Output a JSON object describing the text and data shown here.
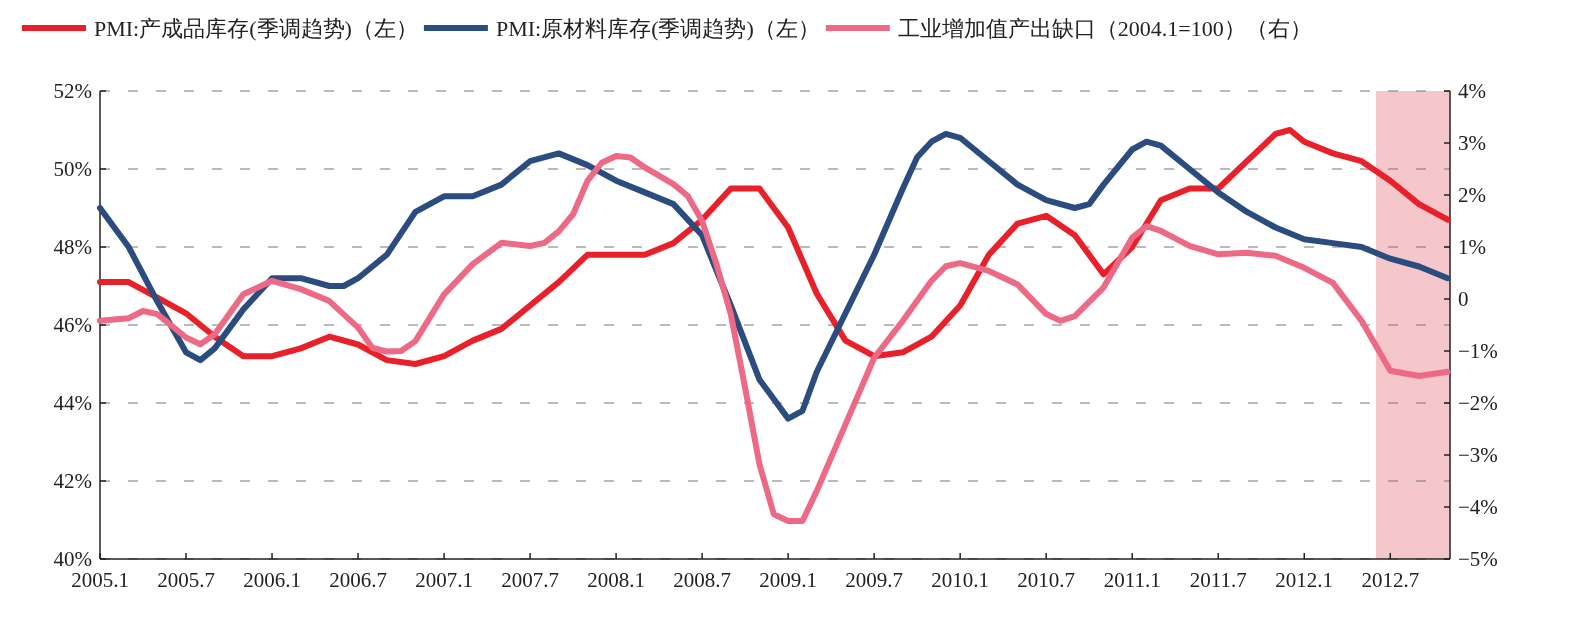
{
  "chart_data": {
    "type": "line",
    "series": [
      {
        "name": "PMI:产成品库存(季调趋势)（左）",
        "color": "#e8202a",
        "x": [
          "2005-01",
          "2005-03",
          "2005-05",
          "2005-07",
          "2005-09",
          "2005-11",
          "2006-01",
          "2006-03",
          "2006-05",
          "2006-07",
          "2006-09",
          "2006-11",
          "2007-01",
          "2007-03",
          "2007-05",
          "2007-07",
          "2007-09",
          "2007-11",
          "2008-01",
          "2008-03",
          "2008-05",
          "2008-07",
          "2008-09",
          "2008-11",
          "2009-01",
          "2009-03",
          "2009-05",
          "2009-07",
          "2009-09",
          "2009-11",
          "2010-01",
          "2010-03",
          "2010-05",
          "2010-07",
          "2010-09",
          "2010-11",
          "2011-01",
          "2011-03",
          "2011-05",
          "2011-07",
          "2011-09",
          "2011-11",
          "2011-12",
          "2012-01",
          "2012-03",
          "2012-05",
          "2012-07",
          "2012-09",
          "2012-11"
        ],
        "values": [
          47.1,
          47.1,
          46.7,
          46.3,
          45.7,
          45.2,
          45.2,
          45.4,
          45.7,
          45.5,
          45.1,
          45.0,
          45.2,
          45.6,
          45.9,
          46.5,
          47.1,
          47.8,
          47.8,
          47.8,
          48.1,
          48.7,
          49.5,
          49.5,
          48.5,
          46.8,
          45.6,
          45.2,
          45.3,
          45.7,
          46.5,
          47.8,
          48.6,
          48.8,
          48.3,
          47.3,
          48.0,
          49.2,
          49.5,
          49.5,
          50.2,
          50.9,
          51.0,
          50.7,
          50.4,
          50.2,
          49.7,
          49.1,
          48.7
        ]
      },
      {
        "name": "PMI:原材料库存(季调趋势)（左）",
        "color": "#2b4c7e",
        "x": [
          "2005-01",
          "2005-03",
          "2005-05",
          "2005-07",
          "2005-08",
          "2005-09",
          "2005-11",
          "2006-01",
          "2006-03",
          "2006-05",
          "2006-06",
          "2006-07",
          "2006-09",
          "2006-11",
          "2007-01",
          "2007-03",
          "2007-05",
          "2007-07",
          "2007-09",
          "2007-11",
          "2008-01",
          "2008-03",
          "2008-05",
          "2008-07",
          "2008-09",
          "2008-11",
          "2009-01",
          "2009-02",
          "2009-03",
          "2009-05",
          "2009-07",
          "2009-09",
          "2009-10",
          "2009-11",
          "2009-12",
          "2010-01",
          "2010-03",
          "2010-05",
          "2010-07",
          "2010-09",
          "2010-10",
          "2010-11",
          "2011-01",
          "2011-02",
          "2011-03",
          "2011-05",
          "2011-07",
          "2011-09",
          "2011-11",
          "2012-01",
          "2012-03",
          "2012-05",
          "2012-07",
          "2012-09",
          "2012-11"
        ],
        "values": [
          49.0,
          48.0,
          46.6,
          45.3,
          45.1,
          45.4,
          46.4,
          47.2,
          47.2,
          47.0,
          47.0,
          47.2,
          47.8,
          48.9,
          49.3,
          49.3,
          49.6,
          50.2,
          50.4,
          50.1,
          49.7,
          49.4,
          49.1,
          48.3,
          46.5,
          44.6,
          43.6,
          43.8,
          44.8,
          46.3,
          47.8,
          49.5,
          50.3,
          50.7,
          50.9,
          50.8,
          50.2,
          49.6,
          49.2,
          49.0,
          49.1,
          49.6,
          50.5,
          50.7,
          50.6,
          50.0,
          49.4,
          48.9,
          48.5,
          48.2,
          48.1,
          48.0,
          47.7,
          47.5,
          47.2
        ]
      },
      {
        "name": "工业增加值产出缺口（2004.1=100）（右）",
        "color": "#ec6a86",
        "axis": "y2",
        "x": [
          "2005-01",
          "2005-03",
          "2005-04",
          "2005-05",
          "2005-07",
          "2005-08",
          "2005-09",
          "2005-11",
          "2006-01",
          "2006-03",
          "2006-05",
          "2006-07",
          "2006-08",
          "2006-09",
          "2006-10",
          "2006-11",
          "2007-01",
          "2007-03",
          "2007-05",
          "2007-07",
          "2007-08",
          "2007-09",
          "2007-10",
          "2007-11",
          "2007-12",
          "2008-01",
          "2008-02",
          "2008-03",
          "2008-05",
          "2008-06",
          "2008-07",
          "2008-08",
          "2008-09",
          "2008-10",
          "2008-11",
          "2008-12",
          "2009-01",
          "2009-02",
          "2009-03",
          "2009-05",
          "2009-07",
          "2009-09",
          "2009-11",
          "2009-12",
          "2010-01",
          "2010-03",
          "2010-05",
          "2010-07",
          "2010-08",
          "2010-09",
          "2010-11",
          "2011-01",
          "2011-02",
          "2011-03",
          "2011-05",
          "2011-07",
          "2011-09",
          "2011-11",
          "2012-01",
          "2012-03",
          "2012-05",
          "2012-07",
          "2012-09",
          "2012-11"
        ],
        "values": [
          -0.42,
          -0.37,
          -0.23,
          -0.29,
          -0.74,
          -0.87,
          -0.68,
          0.09,
          0.35,
          0.19,
          -0.04,
          -0.55,
          -0.94,
          -1.01,
          -1.0,
          -0.81,
          0.09,
          0.67,
          1.08,
          1.02,
          1.08,
          1.3,
          1.63,
          2.27,
          2.62,
          2.75,
          2.72,
          2.53,
          2.21,
          1.98,
          1.5,
          0.67,
          -0.29,
          -1.71,
          -3.18,
          -4.14,
          -4.27,
          -4.27,
          -3.69,
          -2.41,
          -1.13,
          -0.42,
          0.35,
          0.63,
          0.69,
          0.54,
          0.28,
          -0.29,
          -0.42,
          -0.33,
          0.22,
          1.18,
          1.4,
          1.31,
          1.02,
          0.86,
          0.89,
          0.83,
          0.6,
          0.31,
          -0.42,
          -1.38,
          -1.48,
          -1.4
        ]
      }
    ],
    "xlim": [
      "2005-01-01",
      "2012-11-06"
    ],
    "xticks": [
      {
        "value": "2005-01",
        "label": "2005.1"
      },
      {
        "value": "2005-07",
        "label": "2005.7"
      },
      {
        "value": "2006-01",
        "label": "2006.1"
      },
      {
        "value": "2006-07",
        "label": "2006.7"
      },
      {
        "value": "2007-01",
        "label": "2007.1"
      },
      {
        "value": "2007-07",
        "label": "2007.7"
      },
      {
        "value": "2008-01",
        "label": "2008.1"
      },
      {
        "value": "2008-07",
        "label": "2008.7"
      },
      {
        "value": "2009-01",
        "label": "2009.1"
      },
      {
        "value": "2009-07",
        "label": "2009.7"
      },
      {
        "value": "2010-01",
        "label": "2010.1"
      },
      {
        "value": "2010-07",
        "label": "2010.7"
      },
      {
        "value": "2011-01",
        "label": "2011.1"
      },
      {
        "value": "2011-07",
        "label": "2011.7"
      },
      {
        "value": "2012-01",
        "label": "2012.1"
      },
      {
        "value": "2012-07",
        "label": "2012.7"
      }
    ],
    "ylim": [
      40,
      52
    ],
    "yticks": [
      {
        "value": 40,
        "label": "40%"
      },
      {
        "value": 42,
        "label": "42%"
      },
      {
        "value": 44,
        "label": "44%"
      },
      {
        "value": 46,
        "label": "46%"
      },
      {
        "value": 48,
        "label": "48%"
      },
      {
        "value": 50,
        "label": "50%"
      },
      {
        "value": 52,
        "label": "52%"
      }
    ],
    "y2lim": [
      -5,
      4
    ],
    "y2ticks": [
      {
        "value": -5,
        "label": "−5%"
      },
      {
        "value": -4,
        "label": "−4%"
      },
      {
        "value": -3,
        "label": "−3%"
      },
      {
        "value": -2,
        "label": "−2%"
      },
      {
        "value": -1,
        "label": "−1%"
      },
      0,
      {
        "value": 1,
        "label": "1%"
      },
      {
        "value": 2,
        "label": "2%"
      },
      {
        "value": 3,
        "label": "3%"
      },
      {
        "value": 4,
        "label": "4%"
      }
    ],
    "bands": [
      {
        "axis": "x",
        "from": "2012-06",
        "to": "2012-11-06",
        "color": "#f5c6ca"
      }
    ],
    "grid": "y",
    "legend": "top",
    "line_style": "solid",
    "marker": "none"
  }
}
